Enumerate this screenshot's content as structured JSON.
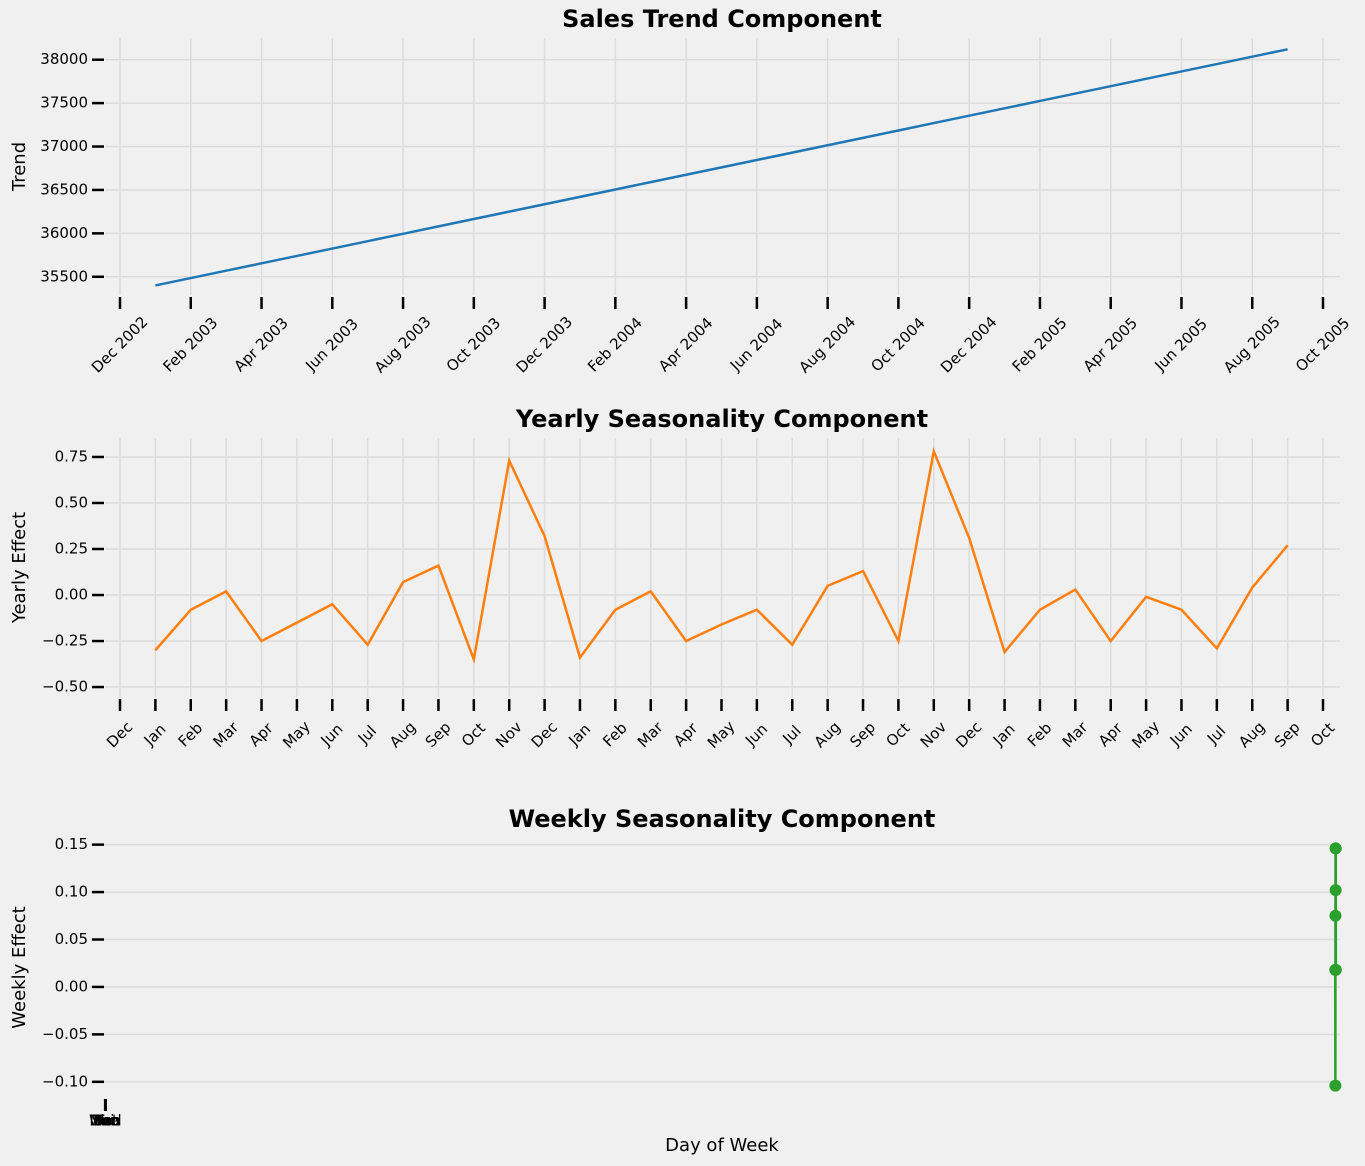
{
  "chart_data": [
    {
      "type": "line",
      "title": "Sales Trend Component",
      "y_label": "Trend",
      "grid": "both",
      "x": [
        "2003-01",
        "2003-02",
        "2003-03",
        "2003-04",
        "2003-05",
        "2003-06",
        "2003-07",
        "2003-08",
        "2003-09",
        "2003-10",
        "2003-11",
        "2003-12",
        "2004-01",
        "2004-02",
        "2004-03",
        "2004-04",
        "2004-05",
        "2004-06",
        "2004-07",
        "2004-08",
        "2004-09",
        "2004-10",
        "2004-11",
        "2004-12",
        "2005-01",
        "2005-02",
        "2005-03",
        "2005-04",
        "2005-05",
        "2005-06",
        "2005-07",
        "2005-08",
        "2005-09"
      ],
      "series": [
        {
          "name": "Trend",
          "color": "#1f77b4",
          "values": [
            35400,
            35485,
            35570,
            35655,
            35740,
            35825,
            35910,
            35995,
            36080,
            36165,
            36250,
            36335,
            36420,
            36505,
            36590,
            36675,
            36760,
            36845,
            36930,
            37015,
            37100,
            37185,
            37270,
            37355,
            37440,
            37525,
            37610,
            37695,
            37780,
            37865,
            37950,
            38035,
            38120
          ]
        }
      ],
      "xlim": [
        "2002-12",
        "2005-10"
      ],
      "xticks": [
        {
          "value": "2002-12",
          "label": "Dec 2002"
        },
        {
          "value": "2003-02",
          "label": "Feb 2003"
        },
        {
          "value": "2003-04",
          "label": "Apr 2003"
        },
        {
          "value": "2003-06",
          "label": "Jun 2003"
        },
        {
          "value": "2003-08",
          "label": "Aug 2003"
        },
        {
          "value": "2003-10",
          "label": "Oct 2003"
        },
        {
          "value": "2003-12",
          "label": "Dec 2003"
        },
        {
          "value": "2004-02",
          "label": "Feb 2004"
        },
        {
          "value": "2004-04",
          "label": "Apr 2004"
        },
        {
          "value": "2004-06",
          "label": "Jun 2004"
        },
        {
          "value": "2004-08",
          "label": "Aug 2004"
        },
        {
          "value": "2004-10",
          "label": "Oct 2004"
        },
        {
          "value": "2004-12",
          "label": "Dec 2004"
        },
        {
          "value": "2005-02",
          "label": "Feb 2005"
        },
        {
          "value": "2005-04",
          "label": "Apr 2005"
        },
        {
          "value": "2005-06",
          "label": "Jun 2005"
        },
        {
          "value": "2005-08",
          "label": "Aug 2005"
        },
        {
          "value": "2005-10",
          "label": "Oct 2005"
        }
      ],
      "ylim": [
        35290,
        38250
      ],
      "yticks": [
        35500,
        36000,
        36500,
        37000,
        37500,
        38000
      ]
    },
    {
      "type": "line",
      "title": "Yearly Seasonality Component",
      "y_label": "Yearly Effect",
      "grid": "both",
      "x": [
        "2003-01",
        "2003-02",
        "2003-03",
        "2003-04",
        "2003-05",
        "2003-06",
        "2003-07",
        "2003-08",
        "2003-09",
        "2003-10",
        "2003-11",
        "2003-12",
        "2004-01",
        "2004-02",
        "2004-03",
        "2004-04",
        "2004-05",
        "2004-06",
        "2004-07",
        "2004-08",
        "2004-09",
        "2004-10",
        "2004-11",
        "2004-12",
        "2005-01",
        "2005-02",
        "2005-03",
        "2005-04",
        "2005-05",
        "2005-06",
        "2005-07",
        "2005-08",
        "2005-09"
      ],
      "series": [
        {
          "name": "Yearly",
          "color": "#ff7f0e",
          "values": [
            -0.3,
            -0.08,
            0.02,
            -0.25,
            -0.15,
            -0.05,
            -0.27,
            0.07,
            0.16,
            -0.35,
            0.73,
            0.32,
            -0.34,
            -0.08,
            0.02,
            -0.25,
            -0.16,
            -0.08,
            -0.27,
            0.05,
            0.13,
            -0.25,
            0.78,
            0.31,
            -0.31,
            -0.08,
            0.03,
            -0.25,
            -0.01,
            -0.08,
            -0.29,
            0.04,
            0.27
          ]
        }
      ],
      "xlim": [
        "2002-12",
        "2005-10"
      ],
      "xticks": [
        {
          "value": "2002-12",
          "label": "Dec"
        },
        {
          "value": "2003-01",
          "label": "Jan"
        },
        {
          "value": "2003-02",
          "label": "Feb"
        },
        {
          "value": "2003-03",
          "label": "Mar"
        },
        {
          "value": "2003-04",
          "label": "Apr"
        },
        {
          "value": "2003-05",
          "label": "May"
        },
        {
          "value": "2003-06",
          "label": "Jun"
        },
        {
          "value": "2003-07",
          "label": "Jul"
        },
        {
          "value": "2003-08",
          "label": "Aug"
        },
        {
          "value": "2003-09",
          "label": "Sep"
        },
        {
          "value": "2003-10",
          "label": "Oct"
        },
        {
          "value": "2003-11",
          "label": "Nov"
        },
        {
          "value": "2003-12",
          "label": "Dec"
        },
        {
          "value": "2004-01",
          "label": "Jan"
        },
        {
          "value": "2004-02",
          "label": "Feb"
        },
        {
          "value": "2004-03",
          "label": "Mar"
        },
        {
          "value": "2004-04",
          "label": "Apr"
        },
        {
          "value": "2004-05",
          "label": "May"
        },
        {
          "value": "2004-06",
          "label": "Jun"
        },
        {
          "value": "2004-07",
          "label": "Jul"
        },
        {
          "value": "2004-08",
          "label": "Aug"
        },
        {
          "value": "2004-09",
          "label": "Sep"
        },
        {
          "value": "2004-10",
          "label": "Oct"
        },
        {
          "value": "2004-11",
          "label": "Nov"
        },
        {
          "value": "2004-12",
          "label": "Dec"
        },
        {
          "value": "2005-01",
          "label": "Jan"
        },
        {
          "value": "2005-02",
          "label": "Feb"
        },
        {
          "value": "2005-03",
          "label": "Mar"
        },
        {
          "value": "2005-04",
          "label": "Apr"
        },
        {
          "value": "2005-05",
          "label": "May"
        },
        {
          "value": "2005-06",
          "label": "Jun"
        },
        {
          "value": "2005-07",
          "label": "Jul"
        },
        {
          "value": "2005-08",
          "label": "Aug"
        },
        {
          "value": "2005-09",
          "label": "Sep"
        },
        {
          "value": "2005-10",
          "label": "Oct"
        }
      ],
      "ylim": [
        -0.554,
        0.853
      ],
      "yticks": [
        {
          "value": -0.5,
          "label": "−0.50"
        },
        {
          "value": -0.25,
          "label": "−0.25"
        },
        {
          "value": 0,
          "label": "0.00"
        },
        0.25,
        {
          "value": 0.5,
          "label": "0.50"
        },
        0.75
      ]
    },
    {
      "type": "line",
      "title": "Weekly Seasonality Component",
      "x_label": "Day of Week",
      "y_label": "Weekly Effect",
      "grid": "y",
      "marker": "o",
      "x": [
        12990,
        12991,
        12992,
        12993,
        12994,
        12995,
        12996
      ],
      "series": [
        {
          "name": "Weekly",
          "color": "#2ca02c",
          "values": [
            0.018,
            -0.104,
            0.075,
            0.146,
            0.102,
            0.146,
            0.018
          ]
        }
      ],
      "xlim": [
        -160,
        13040
      ],
      "xticks": [
        {
          "value": 0,
          "label": "Mon"
        },
        {
          "value": 1,
          "label": "Tue"
        },
        {
          "value": 2,
          "label": "Wed"
        },
        {
          "value": 3,
          "label": "Thu"
        },
        {
          "value": 4,
          "label": "Fri"
        },
        {
          "value": 5,
          "label": "Sat"
        },
        {
          "value": 6,
          "label": "Sun"
        }
      ],
      "ylim": [
        -0.116,
        0.157
      ],
      "yticks": [
        {
          "value": -0.1,
          "label": "−0.10"
        },
        {
          "value": -0.05,
          "label": "−0.05"
        },
        {
          "value": 0,
          "label": "0.00"
        },
        0.05,
        {
          "value": 0.1,
          "label": "0.10"
        },
        0.15
      ]
    }
  ]
}
